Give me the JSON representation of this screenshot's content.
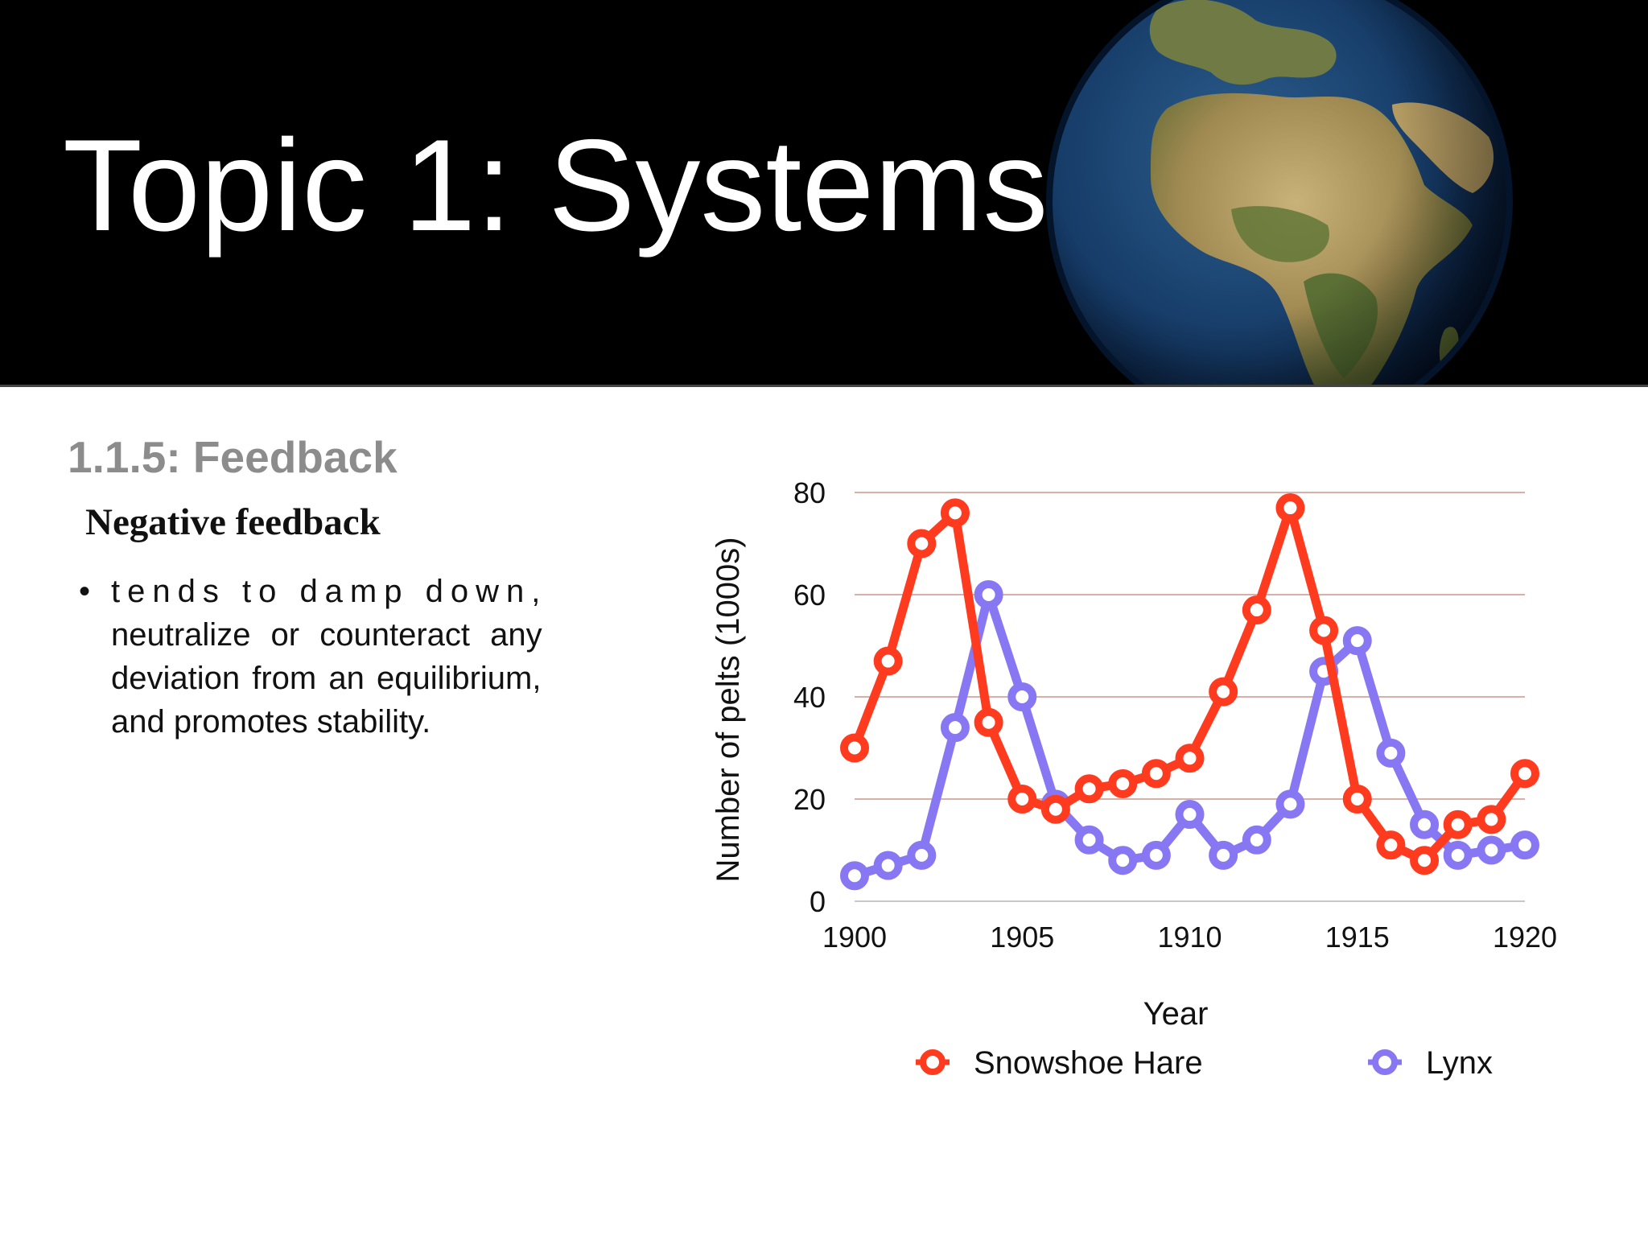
{
  "slide": {
    "title": "Topic 1: Systems",
    "section": "1.1.5: Feedback",
    "subheading": "Negative feedback",
    "bullet_lines": [
      "tends to damp down,",
      "neutralize or counteract any",
      "deviation from an equilibrium,",
      "and promotes stability."
    ],
    "bullet_symbol": "•"
  },
  "colors": {
    "banner": "#000000",
    "heading_gray": "#8c8c8c",
    "hare": "#ff3b1f",
    "lynx": "#8877f2",
    "gridline": "#d9b0a8"
  },
  "banner_image": "earth-globe",
  "chart_data": {
    "type": "line",
    "title": "",
    "xlabel": "Year",
    "ylabel": "Number of pelts (1000s)",
    "xlim": [
      1900,
      1920
    ],
    "ylim": [
      0,
      80
    ],
    "x_ticks": [
      1900,
      1905,
      1910,
      1915,
      1920
    ],
    "y_ticks": [
      0,
      20,
      40,
      60,
      80
    ],
    "grid": true,
    "legend_position": "bottom",
    "x": [
      1900,
      1901,
      1902,
      1903,
      1904,
      1905,
      1906,
      1907,
      1908,
      1909,
      1910,
      1911,
      1912,
      1913,
      1914,
      1915,
      1916,
      1917,
      1918,
      1919,
      1920
    ],
    "series": [
      {
        "name": "Snowshoe Hare",
        "color": "#ff3b1f",
        "values": [
          30,
          47,
          70,
          76,
          35,
          20,
          18,
          22,
          23,
          25,
          28,
          41,
          57,
          77,
          53,
          20,
          11,
          8,
          15,
          16,
          25
        ]
      },
      {
        "name": "Lynx",
        "color": "#8877f2",
        "values": [
          5,
          7,
          9,
          34,
          60,
          40,
          19,
          12,
          8,
          9,
          17,
          9,
          12,
          19,
          45,
          51,
          29,
          15,
          9,
          10,
          11
        ]
      }
    ]
  }
}
